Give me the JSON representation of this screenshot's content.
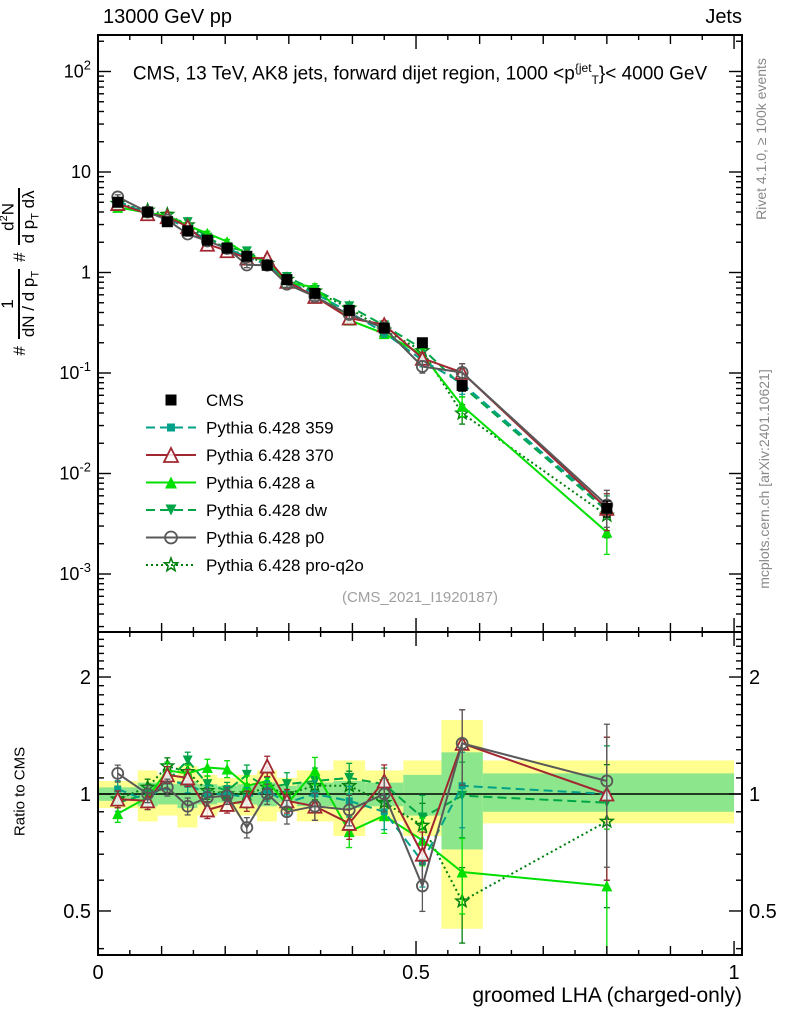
{
  "header": {
    "left": "13000 GeV pp",
    "right": "Jets"
  },
  "title": {
    "a": "CMS, 13 TeV, AK8 jets, forward dijet region, 1000 <p",
    "sup": "{jet",
    "sub": "T",
    "b": "}< 4000 GeV"
  },
  "ylabel": {
    "hash1": "#",
    "f1num": "1",
    "f1den_a": "dN / d p",
    "f1den_sub": "T",
    "hash2": "#",
    "f2num_a": "d",
    "f2num_sup": "2",
    "f2num_b": "N",
    "f2den_a": "d p",
    "f2den_sub": "T",
    "f2den_b": " dλ"
  },
  "ratio_axis_label": "Ratio to CMS",
  "side": {
    "rivet": "Rivet 4.1.0, ≥ 100k events",
    "mcplots": "mcplots.cern.ch [arXiv:2401.10621]"
  },
  "watermark": "(CMS_2021_I1920187)",
  "xaxis_label": "groomed LHA (charged-only)",
  "chart_data": {
    "type": "line",
    "title": "CMS, 13 TeV, AK8 jets, forward dijet region, 1000 < pT_jet < 4000 GeV",
    "xlabel": "groomed LHA (charged-only)",
    "ylabel": "# 1/(dN/dp_T) # d2N/(dp_T dlambda)",
    "ratio_ylabel": "Ratio to CMS",
    "xlim": [
      0,
      1.0125
    ],
    "ylim_top": [
      0.00033,
      220
    ],
    "ylim_ratio": [
      0.385,
      2.61
    ],
    "log_y_top": true,
    "log_y_ratio": true,
    "x": [
      0.031,
      0.078,
      0.109,
      0.141,
      0.172,
      0.203,
      0.234,
      0.266,
      0.297,
      0.341,
      0.395,
      0.45,
      0.51,
      0.5725,
      0.8
    ],
    "bin_edges": [
      0,
      0.0625,
      0.09375,
      0.125,
      0.15625,
      0.1875,
      0.21875,
      0.25,
      0.28125,
      0.3125,
      0.37,
      0.42,
      0.48,
      0.54,
      0.605,
      1.0
    ],
    "cms": {
      "label": "CMS",
      "color": "#000000",
      "values": [
        5.0,
        4.0,
        3.2,
        2.6,
        2.1,
        1.75,
        1.45,
        1.18,
        0.85,
        0.62,
        0.42,
        0.28,
        0.2,
        0.075,
        0.0045
      ],
      "err_frac": [
        0.04,
        0.04,
        0.04,
        0.04,
        0.04,
        0.04,
        0.04,
        0.04,
        0.05,
        0.05,
        0.06,
        0.06,
        0.08,
        0.12,
        0.18
      ]
    },
    "series_err_frac": [
      0.05,
      0.05,
      0.05,
      0.05,
      0.05,
      0.05,
      0.06,
      0.06,
      0.07,
      0.08,
      0.09,
      0.1,
      0.14,
      0.22,
      0.4
    ],
    "series": [
      {
        "name": "Pythia 6.428 pro-q2o",
        "color": "#007F0E",
        "dash": "2,3",
        "marker": "star-open",
        "size": 13,
        "ratio": [
          0.97,
          1.04,
          1.18,
          1.14,
          1.02,
          1.0,
          1.0,
          1.04,
          1.0,
          1.05,
          1.05,
          0.95,
          0.83,
          0.53,
          0.85
        ]
      },
      {
        "name": "Pythia 6.428 dw",
        "color": "#00A646",
        "dash": "9,5",
        "marker": "tri-down-fill",
        "size": 10,
        "ratio": [
          0.95,
          1.0,
          1.08,
          1.22,
          1.06,
          1.02,
          1.12,
          1.04,
          1.06,
          1.08,
          1.1,
          1.06,
          0.87,
          0.99,
          0.95
        ]
      },
      {
        "name": "Pythia 6.428 a",
        "color": "#00DF00",
        "dash": "",
        "marker": "tri-up-fill",
        "size": 11,
        "ratio": [
          0.89,
          0.98,
          1.15,
          1.13,
          1.17,
          1.16,
          1.05,
          1.08,
          0.94,
          1.15,
          0.8,
          0.88,
          0.76,
          0.63,
          0.58
        ]
      },
      {
        "name": "Pythia 6.428 359",
        "color": "#00A189",
        "dash": "9,5",
        "marker": "sq-fill",
        "size": 7,
        "ratio": [
          1.03,
          0.96,
          1.08,
          1.06,
          1.0,
          1.0,
          0.98,
          1.02,
          0.95,
          1.0,
          0.96,
          0.9,
          0.67,
          1.05,
          1.0
        ]
      },
      {
        "name": "Pythia 6.428 370",
        "color": "#A12830",
        "dash": "",
        "marker": "tri-up-open",
        "size": 13,
        "ratio": [
          0.97,
          0.96,
          1.12,
          1.1,
          0.91,
          0.94,
          0.96,
          1.18,
          0.96,
          0.93,
          0.84,
          1.08,
          0.7,
          1.35,
          1.0
        ]
      },
      {
        "name": "Pythia 6.428 p0",
        "color": "#595959",
        "dash": "",
        "marker": "circle-open",
        "size": 11,
        "ratio": [
          1.13,
          1.0,
          1.04,
          0.93,
          0.98,
          0.99,
          0.82,
          1.0,
          0.9,
          0.93,
          0.91,
          1.0,
          0.58,
          1.35,
          1.08
        ]
      }
    ],
    "legend_order": [
      "CMS",
      "Pythia 6.428 359",
      "Pythia 6.428 370",
      "Pythia 6.428 a",
      "Pythia 6.428 dw",
      "Pythia 6.428 p0",
      "Pythia 6.428 pro-q2o"
    ],
    "bands": {
      "yellow": {
        "color": "#FFFF8F",
        "lo": [
          0.92,
          0.85,
          0.88,
          0.82,
          0.88,
          0.9,
          0.88,
          0.85,
          0.9,
          0.85,
          0.78,
          0.85,
          0.78,
          0.45,
          0.84
        ],
        "hi": [
          1.08,
          1.15,
          1.12,
          1.18,
          1.12,
          1.1,
          1.12,
          1.15,
          1.1,
          1.15,
          1.22,
          1.15,
          1.22,
          1.55,
          1.22
        ]
      },
      "green": {
        "color": "#8CE78C",
        "lo": [
          0.96,
          0.93,
          0.94,
          0.92,
          0.94,
          0.95,
          0.94,
          0.93,
          0.95,
          0.93,
          0.92,
          0.93,
          0.88,
          0.72,
          0.9
        ],
        "hi": [
          1.04,
          1.07,
          1.06,
          1.08,
          1.06,
          1.05,
          1.06,
          1.07,
          1.05,
          1.07,
          1.08,
          1.07,
          1.12,
          1.28,
          1.13
        ]
      }
    },
    "y_ticks_top": [
      {
        "v": 100,
        "base": "10",
        "sup": "2"
      },
      {
        "v": 10,
        "base": "10",
        "sup": ""
      },
      {
        "v": 1,
        "base": "1",
        "sup": ""
      },
      {
        "v": 0.1,
        "base": "10",
        "sup": "-1"
      },
      {
        "v": 0.01,
        "base": "10",
        "sup": "-2"
      },
      {
        "v": 0.001,
        "base": "10",
        "sup": "-3"
      }
    ],
    "y_ticks_ratio": [
      {
        "v": 2,
        "label": "2"
      },
      {
        "v": 1,
        "label": "1"
      },
      {
        "v": 0.5,
        "label": "0.5"
      }
    ],
    "x_ticks": [
      {
        "v": 0,
        "label": "0"
      },
      {
        "v": 0.5,
        "label": "0.5"
      },
      {
        "v": 1,
        "label": "1"
      }
    ]
  }
}
